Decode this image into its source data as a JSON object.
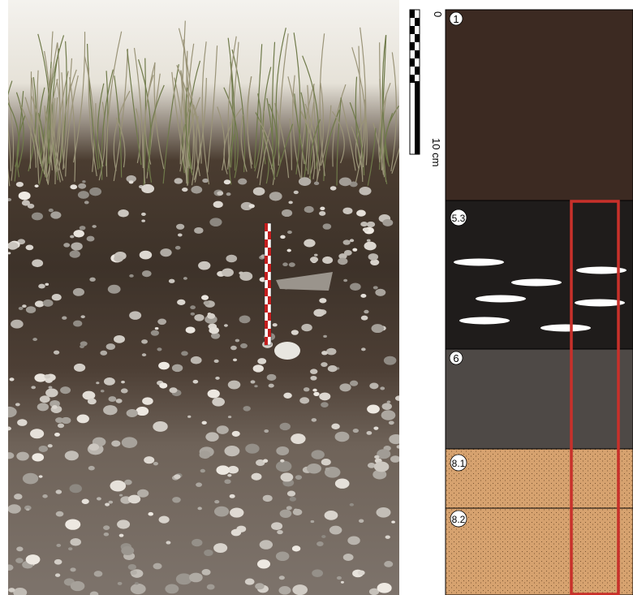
{
  "scale": {
    "top_label": "0",
    "bottom_label": "10 cm"
  },
  "layers": [
    {
      "label": "1"
    },
    {
      "label": "5.3"
    },
    {
      "label": "6"
    },
    {
      "label": "8.1"
    },
    {
      "label": "8.2"
    }
  ]
}
